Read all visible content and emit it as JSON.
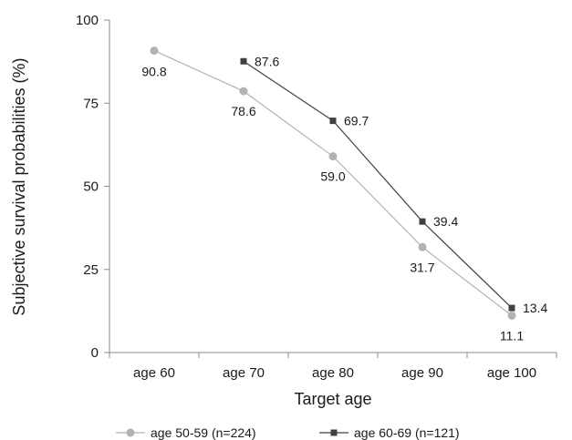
{
  "chart_data": {
    "type": "line",
    "xlabel": "Target age",
    "ylabel": "Subjective survival probabilities (%)",
    "categories": [
      "age 60",
      "age 70",
      "age 80",
      "age 90",
      "age 100"
    ],
    "ylim": [
      0,
      100
    ],
    "yticks": [
      "0",
      "25",
      "50",
      "75",
      "100"
    ],
    "grid": false,
    "legend_position": "bottom",
    "series": [
      {
        "name": "age 50-59 (n=224)",
        "values": [
          90.8,
          78.6,
          59.0,
          31.7,
          11.1
        ],
        "labels": [
          "90.8",
          "78.6",
          "59.0",
          "31.7",
          "11.1"
        ],
        "color": "#b3b3b3",
        "marker": "circle"
      },
      {
        "name": "age 60-69 (n=121)",
        "values": [
          null,
          87.6,
          69.7,
          39.4,
          13.4
        ],
        "labels": [
          "",
          "87.6",
          "69.7",
          "39.4",
          "13.4"
        ],
        "color": "#404040",
        "marker": "square"
      }
    ]
  }
}
